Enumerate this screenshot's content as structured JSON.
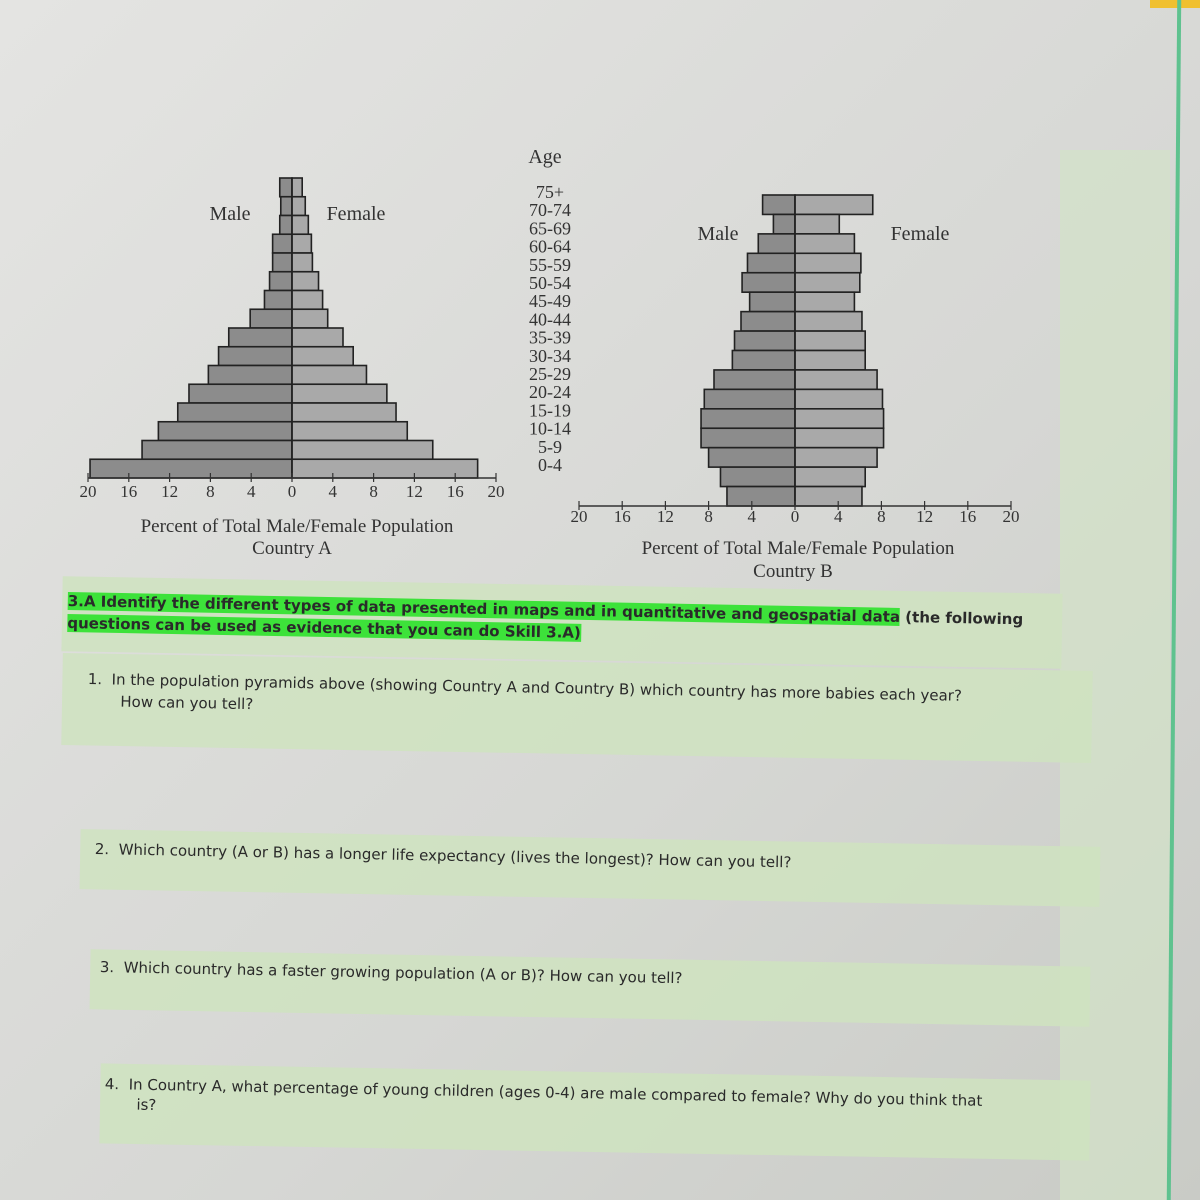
{
  "chart_data": [
    {
      "type": "bar",
      "subtype": "population-pyramid",
      "title": "Country A",
      "xlabel": "Percent of Total Male/Female Population",
      "ylabel": "Age",
      "xlim": [
        -20,
        20
      ],
      "xticks": [
        "20",
        "16",
        "12",
        "8",
        "4",
        "0",
        "4",
        "8",
        "12",
        "16",
        "20"
      ],
      "categories": [
        "75+",
        "70-74",
        "65-69",
        "60-64",
        "55-59",
        "50-54",
        "45-49",
        "40-44",
        "35-39",
        "30-34",
        "25-29",
        "20-24",
        "15-19",
        "10-14",
        "5-9",
        "0-4"
      ],
      "series": [
        {
          "name": "Male",
          "values": [
            1.2,
            1.1,
            1.2,
            1.9,
            1.9,
            2.2,
            2.7,
            4.1,
            6.2,
            7.2,
            8.2,
            10.1,
            11.2,
            13.1,
            14.7,
            19.8
          ]
        },
        {
          "name": "Female",
          "values": [
            1.0,
            1.3,
            1.6,
            1.9,
            2.0,
            2.6,
            3.0,
            3.5,
            5.0,
            6.0,
            7.3,
            9.3,
            10.2,
            11.3,
            13.8,
            18.2
          ]
        }
      ],
      "grid": false
    },
    {
      "type": "bar",
      "subtype": "population-pyramid",
      "title": "Country B",
      "xlabel": "Percent of Total Male/Female Population",
      "xlim": [
        -20,
        20
      ],
      "xticks": [
        "20",
        "16",
        "12",
        "8",
        "4",
        "0",
        "4",
        "8",
        "12",
        "16",
        "20"
      ],
      "categories": [
        "75+",
        "70-74",
        "65-69",
        "60-64",
        "55-59",
        "50-54",
        "45-49",
        "40-44",
        "35-39",
        "30-34",
        "25-29",
        "20-24",
        "15-19",
        "10-14",
        "5-9",
        "0-4"
      ],
      "series": [
        {
          "name": "Male",
          "values": [
            3.0,
            2.0,
            3.4,
            4.4,
            4.9,
            4.2,
            5.0,
            5.6,
            5.8,
            7.5,
            8.4,
            8.7,
            8.7,
            8.0,
            6.9,
            6.3
          ]
        },
        {
          "name": "Female",
          "values": [
            7.2,
            4.1,
            5.5,
            6.1,
            6.0,
            5.5,
            6.2,
            6.5,
            6.5,
            7.6,
            8.1,
            8.2,
            8.2,
            7.6,
            6.5,
            6.2
          ]
        }
      ],
      "grid": false
    }
  ],
  "colors": {
    "male_bar": "#8c8c8c",
    "female_bar": "#a9a9a9",
    "highlight": "#3de23a",
    "accent_line": "#5fc28f"
  },
  "worksheet": {
    "heading_highlighted": "3.A Identify the different types of data presented in maps and in quantitative and geospatial data",
    "heading_rest": " (the following",
    "heading_line2": "questions can be used as evidence that you can do Skill 3.A)",
    "questions": [
      {
        "num": "1.",
        "line1": "In the population pyramids above (showing Country A and Country B) which country has more babies each year?",
        "line2": "How can you tell?"
      },
      {
        "num": "2.",
        "line1": "Which country (A or B) has a longer life expectancy (lives the longest)? How can you tell?",
        "line2": ""
      },
      {
        "num": "3.",
        "line1": "Which country has a faster growing population (A or B)? How can you tell?",
        "line2": ""
      },
      {
        "num": "4.",
        "line1": "In Country A, what percentage of young children (ages 0-4) are male compared to female? Why do you think that",
        "line2": "is?"
      }
    ]
  }
}
